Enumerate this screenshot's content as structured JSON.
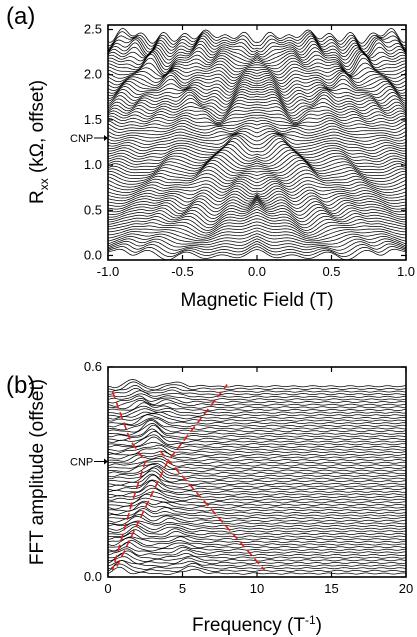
{
  "chart_data": [
    {
      "type": "line",
      "panel_label": "(a)",
      "xlabel": "Magnetic Field (T)",
      "ylabel": "R",
      "ylabel_sub": "xx",
      "ylabel_unit": " (kΩ, offset)",
      "xlim": [
        -1.0,
        1.0
      ],
      "ylim": [
        -0.05,
        2.55
      ],
      "x_ticks": [
        "-1.0",
        "-0.5",
        "0.0",
        "0.5",
        "1.0"
      ],
      "x_tick_values": [
        -1.0,
        -0.5,
        0.0,
        0.5,
        1.0
      ],
      "y_ticks": [
        "0.0",
        "0.5",
        "1.0",
        "1.5",
        "2.0",
        "2.5"
      ],
      "y_tick_values": [
        0.0,
        0.5,
        1.0,
        1.5,
        2.0,
        2.5
      ],
      "annotation": {
        "text": "CNP",
        "y": 1.3
      },
      "series_description": "Stacked waterfall of about 80 magnetoresistance traces, each vertically offset, showing fan-like oscillation features symmetric about B = 0",
      "trace_count": 80,
      "trace_offset_start": 0.0,
      "trace_offset_end": 2.42,
      "grid": false,
      "legend": "none"
    },
    {
      "type": "line",
      "panel_label": "(b)",
      "xlabel": "Frequency (T",
      "xlabel_sup": "-1",
      "xlabel_end": ")",
      "ylabel": "FFT amplitude (offset)",
      "xlim": [
        0,
        20
      ],
      "ylim": [
        0.0,
        0.6
      ],
      "x_ticks": [
        "0",
        "5",
        "10",
        "15",
        "20"
      ],
      "x_tick_values": [
        0,
        5,
        10,
        15,
        20
      ],
      "y_ticks": [
        "0.0",
        "0.6"
      ],
      "y_tick_values": [
        0.0,
        0.6
      ],
      "annotation": {
        "text": "CNP",
        "y": 0.33
      },
      "series_description": "Stacked FFT spectra of the traces in (a), each vertically offset, with peaks near 1–4 T^-1 that shift away from the CNP",
      "trace_count": 72,
      "trace_offset_start": 0.01,
      "trace_offset_end": 0.545,
      "guide_lines": [
        {
          "color": "#e0201b",
          "style": "dashed",
          "points": [
            [
              0.3,
              0.53
            ],
            [
              1.5,
              0.39
            ],
            [
              2.5,
              0.33
            ],
            [
              1.6,
              0.21
            ],
            [
              0.3,
              0.02
            ]
          ]
        },
        {
          "color": "#e0201b",
          "style": "dashed",
          "points": [
            [
              0.6,
              0.03
            ],
            [
              4.0,
              0.33
            ],
            [
              8.0,
              0.55
            ]
          ]
        },
        {
          "color": "#e0201b",
          "style": "dashed",
          "points": [
            [
              3.5,
              0.36
            ],
            [
              10.5,
              0.02
            ]
          ]
        }
      ],
      "grid": false,
      "legend": "none"
    }
  ]
}
